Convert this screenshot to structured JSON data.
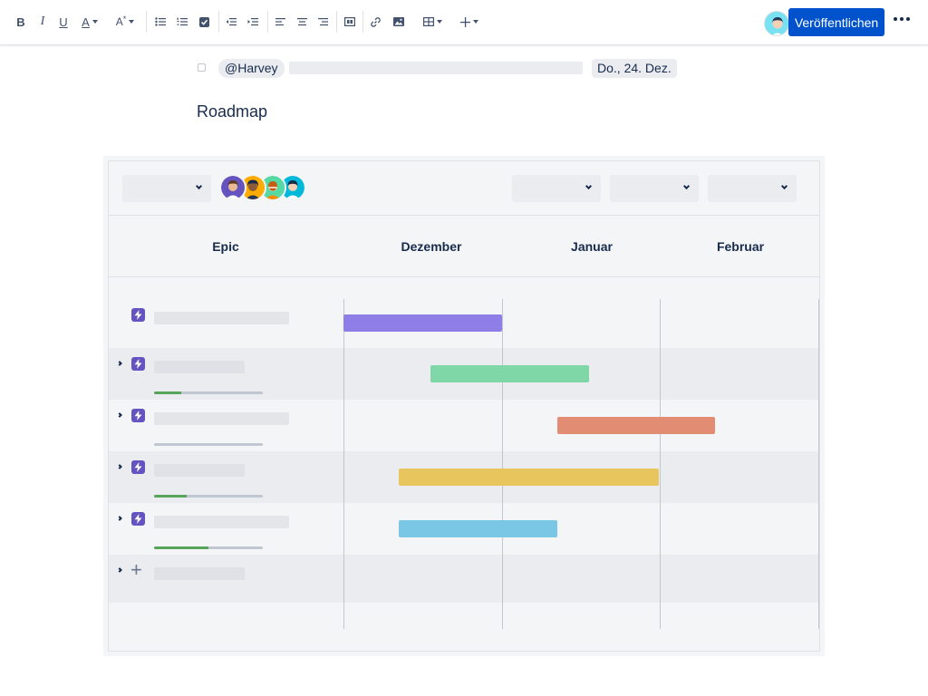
{
  "toolbar": {
    "buttons": [
      {
        "name": "bold-icon",
        "glyph": "B"
      },
      {
        "name": "italic-icon",
        "glyph": "I"
      },
      {
        "name": "underline-icon",
        "glyph": "U"
      },
      {
        "name": "text-color-icon",
        "glyph": "A"
      },
      {
        "name": "more-formatting-icon",
        "glyph": "A"
      }
    ],
    "publish_label": "Veröffentlichen",
    "accent": "#0052cc"
  },
  "task": {
    "mention": "@Harvey",
    "date": "Do., 24. Dez."
  },
  "page": {
    "heading": "Roadmap"
  },
  "roadmap": {
    "columns": {
      "epic": "Epic",
      "months": [
        "Dezember",
        "Januar",
        "Februar"
      ]
    },
    "epics": [
      {
        "bar_color": "#8f7ee7",
        "progress": null
      },
      {
        "bar_color": "#7fd6a7",
        "progress": 0.25
      },
      {
        "bar_color": "#e18c73",
        "progress": 0
      },
      {
        "bar_color": "#e8c55d",
        "progress": 0.3
      },
      {
        "bar_color": "#79c7e5",
        "progress": 0.5
      }
    ],
    "timeline": [
      {
        "start_month": 0,
        "start": 0.0,
        "end_month": 0,
        "end": 1.0
      },
      {
        "start_month": 0,
        "start": 0.55,
        "end_month": 1,
        "end": 0.55
      },
      {
        "start_month": 1,
        "start": 0.35,
        "end_month": 2,
        "end": 0.35
      },
      {
        "start_month": 0,
        "start": 0.35,
        "end_month": 1,
        "end": 0.99
      },
      {
        "start_month": 0,
        "start": 0.35,
        "end_month": 1,
        "end": 0.35
      }
    ]
  }
}
